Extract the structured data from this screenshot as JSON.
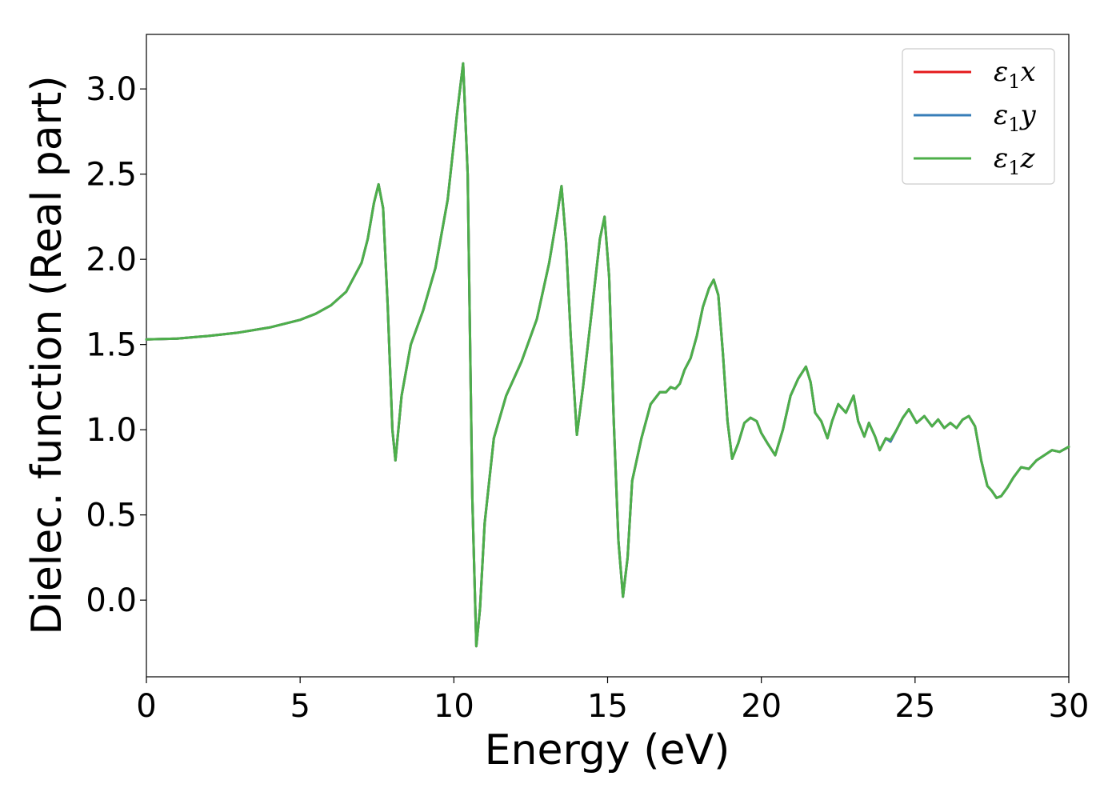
{
  "chart_data": {
    "type": "line",
    "xlabel": "Energy (eV)",
    "ylabel": "Dielec. function (Real part)",
    "xlim": [
      0,
      30
    ],
    "ylim": [
      -0.45,
      3.32
    ],
    "xticks": [
      0,
      5,
      10,
      15,
      20,
      25,
      30
    ],
    "xtick_labels": [
      "0",
      "5",
      "10",
      "15",
      "20",
      "25",
      "30"
    ],
    "yticks": [
      0.0,
      0.5,
      1.0,
      1.5,
      2.0,
      2.5,
      3.0
    ],
    "ytick_labels": [
      "0.0",
      "0.5",
      "1.0",
      "1.5",
      "2.0",
      "2.5",
      "3.0"
    ],
    "grid": false,
    "legend": {
      "position": "top-right",
      "entries": [
        {
          "label_base": "ε",
          "label_sub": "1",
          "label_tail": "x",
          "color": "#e41a1c"
        },
        {
          "label_base": "ε",
          "label_sub": "1",
          "label_tail": "y",
          "color": "#377eb8"
        },
        {
          "label_base": "ε",
          "label_sub": "1",
          "label_tail": "z",
          "color": "#4daf4a"
        }
      ]
    },
    "x": [
      0,
      1,
      2,
      3,
      4,
      5,
      5.5,
      6,
      6.5,
      7,
      7.2,
      7.4,
      7.55,
      7.7,
      7.85,
      8.0,
      8.1,
      8.3,
      8.6,
      9.0,
      9.4,
      9.8,
      10.1,
      10.3,
      10.45,
      10.6,
      10.73,
      10.85,
      11.0,
      11.3,
      11.7,
      12.2,
      12.7,
      13.1,
      13.35,
      13.5,
      13.65,
      13.8,
      14.0,
      14.2,
      14.5,
      14.75,
      14.9,
      15.05,
      15.2,
      15.35,
      15.5,
      15.65,
      15.8,
      16.1,
      16.4,
      16.7,
      16.9,
      17.05,
      17.2,
      17.35,
      17.5,
      17.7,
      17.9,
      18.1,
      18.3,
      18.45,
      18.6,
      18.75,
      18.9,
      19.05,
      19.25,
      19.45,
      19.65,
      19.85,
      20.0,
      20.2,
      20.45,
      20.7,
      20.95,
      21.2,
      21.45,
      21.6,
      21.75,
      21.95,
      22.15,
      22.3,
      22.5,
      22.75,
      23.0,
      23.15,
      23.35,
      23.5,
      23.7,
      23.85,
      24.05,
      24.2,
      24.4,
      24.6,
      24.8,
      25.05,
      25.3,
      25.55,
      25.75,
      25.95,
      26.15,
      26.35,
      26.55,
      26.75,
      26.95,
      27.15,
      27.35,
      27.5,
      27.65,
      27.8,
      28.0,
      28.2,
      28.45,
      28.7,
      28.95,
      29.2,
      29.45,
      29.7,
      30.0
    ],
    "series": [
      {
        "color": "#e41a1c",
        "values": [
          1.53,
          1.535,
          1.55,
          1.57,
          1.6,
          1.645,
          1.68,
          1.73,
          1.81,
          1.98,
          2.12,
          2.33,
          2.44,
          2.3,
          1.72,
          1.0,
          0.82,
          1.2,
          1.5,
          1.7,
          1.95,
          2.35,
          2.85,
          3.15,
          2.5,
          0.6,
          -0.27,
          -0.05,
          0.45,
          0.95,
          1.2,
          1.4,
          1.65,
          1.98,
          2.25,
          2.43,
          2.1,
          1.55,
          0.97,
          1.25,
          1.72,
          2.12,
          2.25,
          1.9,
          1.05,
          0.35,
          0.02,
          0.25,
          0.7,
          0.95,
          1.15,
          1.22,
          1.22,
          1.25,
          1.24,
          1.27,
          1.35,
          1.42,
          1.55,
          1.72,
          1.83,
          1.88,
          1.79,
          1.45,
          1.05,
          0.83,
          0.92,
          1.04,
          1.07,
          1.05,
          0.98,
          0.92,
          0.85,
          1.0,
          1.2,
          1.3,
          1.37,
          1.28,
          1.1,
          1.05,
          0.95,
          1.05,
          1.15,
          1.1,
          1.2,
          1.05,
          0.96,
          1.04,
          0.96,
          0.88,
          0.95,
          0.93,
          1.0,
          1.07,
          1.12,
          1.04,
          1.08,
          1.02,
          1.06,
          1.01,
          1.04,
          1.01,
          1.06,
          1.08,
          1.02,
          0.82,
          0.67,
          0.64,
          0.6,
          0.61,
          0.66,
          0.72,
          0.78,
          0.77,
          0.82,
          0.85,
          0.88,
          0.87,
          0.9
        ]
      },
      {
        "color": "#377eb8",
        "values": [
          1.53,
          1.535,
          1.55,
          1.57,
          1.6,
          1.645,
          1.68,
          1.73,
          1.81,
          1.98,
          2.12,
          2.33,
          2.44,
          2.3,
          1.72,
          1.0,
          0.82,
          1.2,
          1.5,
          1.7,
          1.95,
          2.35,
          2.85,
          3.15,
          2.5,
          0.6,
          -0.27,
          -0.05,
          0.45,
          0.95,
          1.2,
          1.4,
          1.65,
          1.98,
          2.25,
          2.43,
          2.1,
          1.55,
          0.97,
          1.25,
          1.72,
          2.12,
          2.25,
          1.9,
          1.05,
          0.35,
          0.02,
          0.25,
          0.7,
          0.95,
          1.15,
          1.22,
          1.22,
          1.25,
          1.24,
          1.27,
          1.35,
          1.42,
          1.55,
          1.72,
          1.83,
          1.88,
          1.79,
          1.45,
          1.05,
          0.83,
          0.92,
          1.04,
          1.07,
          1.05,
          0.98,
          0.92,
          0.85,
          1.0,
          1.2,
          1.3,
          1.37,
          1.28,
          1.1,
          1.05,
          0.95,
          1.05,
          1.15,
          1.1,
          1.2,
          1.05,
          0.96,
          1.04,
          0.96,
          0.88,
          0.95,
          0.93,
          1.0,
          1.07,
          1.12,
          1.04,
          1.08,
          1.02,
          1.06,
          1.01,
          1.04,
          1.01,
          1.06,
          1.08,
          1.02,
          0.82,
          0.67,
          0.64,
          0.6,
          0.61,
          0.66,
          0.72,
          0.78,
          0.77,
          0.82,
          0.85,
          0.88,
          0.87,
          0.9
        ]
      },
      {
        "color": "#4daf4a",
        "values": [
          1.53,
          1.535,
          1.55,
          1.57,
          1.6,
          1.645,
          1.68,
          1.73,
          1.81,
          1.98,
          2.12,
          2.33,
          2.44,
          2.3,
          1.72,
          1.0,
          0.82,
          1.2,
          1.5,
          1.7,
          1.95,
          2.35,
          2.85,
          3.15,
          2.5,
          0.6,
          -0.27,
          -0.05,
          0.45,
          0.95,
          1.2,
          1.4,
          1.65,
          1.98,
          2.25,
          2.43,
          2.1,
          1.55,
          0.97,
          1.25,
          1.72,
          2.12,
          2.25,
          1.9,
          1.05,
          0.35,
          0.02,
          0.25,
          0.7,
          0.95,
          1.15,
          1.22,
          1.22,
          1.25,
          1.24,
          1.27,
          1.35,
          1.42,
          1.55,
          1.72,
          1.83,
          1.88,
          1.79,
          1.45,
          1.05,
          0.83,
          0.92,
          1.04,
          1.07,
          1.05,
          0.98,
          0.92,
          0.85,
          1.0,
          1.2,
          1.3,
          1.37,
          1.28,
          1.1,
          1.05,
          0.95,
          1.05,
          1.15,
          1.1,
          1.2,
          1.05,
          0.96,
          1.04,
          0.96,
          0.88,
          0.95,
          0.94,
          1.0,
          1.07,
          1.12,
          1.04,
          1.08,
          1.02,
          1.06,
          1.01,
          1.04,
          1.01,
          1.06,
          1.08,
          1.02,
          0.82,
          0.67,
          0.64,
          0.6,
          0.61,
          0.66,
          0.72,
          0.78,
          0.77,
          0.82,
          0.85,
          0.88,
          0.87,
          0.9
        ]
      }
    ]
  }
}
